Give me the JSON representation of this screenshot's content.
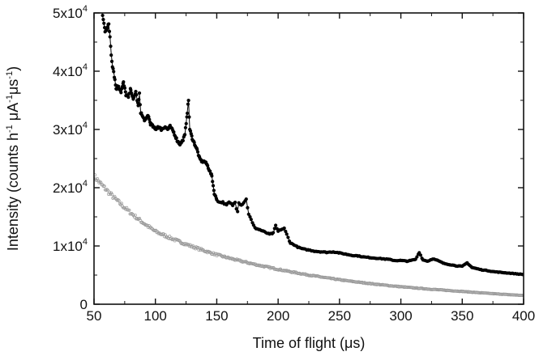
{
  "chart_data": {
    "type": "scatter",
    "title": "",
    "xlabel": "Time of flight (μs)",
    "ylabel": {
      "main": "Intensity (counts h",
      "sup1": "-1",
      "mid1": " μA",
      "sup2": "-1",
      "mid2": "μs",
      "sup3": "-1",
      "end": ")"
    },
    "xlim": [
      50,
      400
    ],
    "ylim": [
      0,
      50000
    ],
    "x_ticks": [
      50,
      100,
      150,
      200,
      250,
      300,
      350,
      400
    ],
    "x_tick_labels": [
      "50",
      "100",
      "150",
      "200",
      "250",
      "300",
      "350",
      "400"
    ],
    "y_ticks": [
      0,
      10000,
      20000,
      30000,
      40000,
      50000
    ],
    "y_tick_labels": [
      {
        "base": "0",
        "exp": ""
      },
      {
        "base": "1x10",
        "exp": "4"
      },
      {
        "base": "2x10",
        "exp": "4"
      },
      {
        "base": "3x10",
        "exp": "4"
      },
      {
        "base": "4x10",
        "exp": "4"
      },
      {
        "base": "5x10",
        "exp": "4"
      }
    ],
    "grid": false,
    "legend": "none",
    "series": [
      {
        "color": "#000000",
        "marker": "filled-circle",
        "connected": true,
        "x": [
          57,
          59,
          61,
          62,
          63,
          64,
          65,
          66,
          67,
          68,
          70,
          72,
          74,
          76,
          78,
          80,
          82,
          84,
          86,
          87,
          88,
          90,
          92,
          94,
          96,
          98,
          100,
          102,
          105,
          108,
          110,
          112,
          115,
          118,
          120,
          122,
          124,
          126,
          127,
          128,
          130,
          132,
          134,
          136,
          138,
          140,
          142,
          144,
          146,
          148,
          150,
          152,
          155,
          158,
          160,
          163,
          165,
          166,
          167,
          168,
          170,
          172,
          174,
          176,
          178,
          180,
          182,
          185,
          188,
          190,
          193,
          196,
          198,
          200,
          202,
          205,
          207,
          210,
          213,
          216,
          220,
          225,
          230,
          235,
          240,
          245,
          250,
          255,
          260,
          265,
          270,
          275,
          280,
          285,
          290,
          295,
          300,
          305,
          308,
          312,
          315,
          318,
          322,
          326,
          330,
          335,
          340,
          345,
          350,
          354,
          358,
          362,
          366,
          370,
          375,
          380,
          385,
          390,
          395,
          400
        ],
        "y": [
          49500,
          47000,
          47500,
          48000,
          46000,
          43000,
          41000,
          40000,
          38500,
          37000,
          37500,
          36500,
          38000,
          36000,
          35500,
          37000,
          35000,
          36500,
          34000,
          36000,
          33000,
          32000,
          31500,
          32500,
          31000,
          30500,
          30000,
          30500,
          30000,
          30500,
          30000,
          30500,
          29500,
          28000,
          27500,
          28000,
          29000,
          33000,
          35000,
          30000,
          28500,
          27500,
          26500,
          25000,
          24500,
          24500,
          24000,
          23000,
          22000,
          19000,
          18000,
          17500,
          17500,
          17000,
          17500,
          17000,
          17500,
          16500,
          16000,
          17500,
          17000,
          17500,
          18000,
          15500,
          14500,
          13500,
          13000,
          12800,
          12500,
          12300,
          12000,
          12200,
          13500,
          12500,
          12800,
          13000,
          12000,
          10500,
          10200,
          9800,
          9500,
          9300,
          9100,
          9000,
          8900,
          9000,
          8800,
          8600,
          8400,
          8300,
          8100,
          8000,
          7900,
          7800,
          7700,
          7500,
          7500,
          7400,
          7500,
          7700,
          8900,
          7600,
          7400,
          7800,
          7500,
          7000,
          6800,
          6600,
          6500,
          7100,
          6300,
          6100,
          5900,
          5800,
          5600,
          5500,
          5400,
          5300,
          5200,
          5100
        ]
      },
      {
        "color": "#9a9a9a",
        "marker": "small-open-circle",
        "connected": false,
        "model": "exponential-decay",
        "y_at_x": {
          "50": 22000,
          "100": 12500,
          "150": 8500,
          "200": 6000,
          "250": 4200,
          "300": 3000,
          "350": 2200,
          "400": 1500
        }
      }
    ]
  }
}
